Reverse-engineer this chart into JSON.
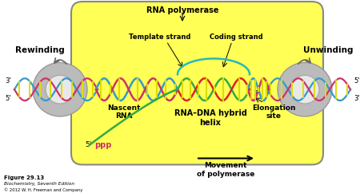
{
  "bg_color": "#ffffff",
  "bubble_color": "#ffff55",
  "bubble_edge": "#888888",
  "strand_blue": "#3399cc",
  "strand_pink": "#cc3366",
  "strand_red": "#dd2222",
  "strand_green": "#33aa44",
  "rung_color": "#dddd00",
  "arrow_color": "#555555",
  "text_color": "#000000",
  "labels": {
    "rna_pol": "RNA polymerase",
    "template": "Template strand",
    "coding": "Coding strand",
    "nascent": "Nascent\nRNA",
    "hybrid": "RNA–DNA hybrid\nhelix",
    "elongation": "Elongation\nsite",
    "rewinding": "Rewinding",
    "unwinding": "Unwinding",
    "movement": "Movement\nof polymerase",
    "fig": "Figure 29.13",
    "bio": "Biochemistry, Seventh Edition",
    "copy": "© 2012 W. H. Freeman and Company"
  }
}
